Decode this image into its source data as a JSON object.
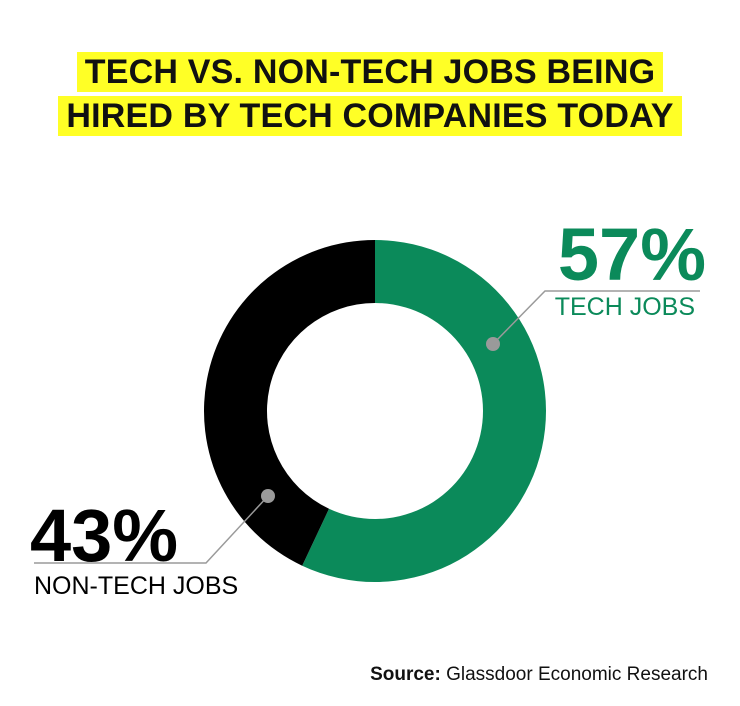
{
  "header": {
    "title_line1": "TECH VS. NON-TECH JOBS BEING",
    "title_line2": "HIRED BY TECH COMPANIES TODAY"
  },
  "chart_data": {
    "type": "pie",
    "donut": true,
    "title": "TECH VS. NON-TECH JOBS BEING HIRED BY TECH COMPANIES TODAY",
    "slices": [
      {
        "label": "TECH JOBS",
        "value": 57,
        "display": "57%",
        "color": "#0b8a5a"
      },
      {
        "label": "NON-TECH JOBS",
        "value": 43,
        "display": "43%",
        "color": "#000000"
      }
    ]
  },
  "source": {
    "label": "Source:",
    "text": "Glassdoor Economic Research"
  },
  "colors": {
    "highlight": "#ffff26",
    "tech": "#0b8a5a",
    "nontech": "#000000",
    "callout_dot": "#9a9a9a"
  }
}
